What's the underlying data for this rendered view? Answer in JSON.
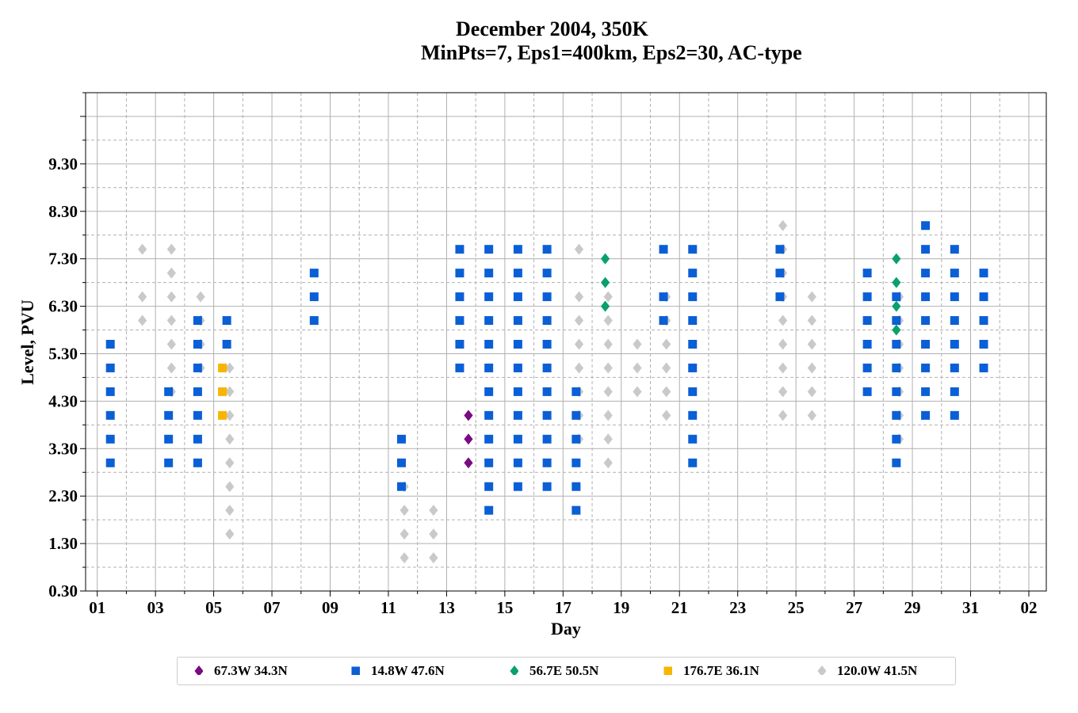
{
  "chart_data": {
    "type": "scatter",
    "title_line1": "December 2004, 350K",
    "title_line2": "MinPts=7, Eps1=400km, Eps2=30, AC-type",
    "xlabel": "Day",
    "ylabel": "Level, PVU",
    "x_ticks": [
      "01",
      "03",
      "05",
      "07",
      "09",
      "11",
      "13",
      "15",
      "17",
      "19",
      "21",
      "23",
      "25",
      "27",
      "29",
      "31",
      "02"
    ],
    "y_ticks": [
      "0.30",
      "1.30",
      "2.30",
      "3.30",
      "4.30",
      "5.30",
      "6.30",
      "7.30",
      "8.30",
      "9.30"
    ],
    "xlim": [
      0.6,
      33.6
    ],
    "ylim": [
      0.3,
      10.8
    ],
    "grid": true,
    "legend_position": "bottom-center",
    "series": [
      {
        "name": "67.3W 34.3N",
        "color": "#7a0a82",
        "marker": "diamond",
        "points": [
          [
            13.75,
            3.0
          ],
          [
            13.75,
            3.5
          ],
          [
            13.75,
            4.0
          ]
        ]
      },
      {
        "name": "14.8W 47.6N",
        "color": "#0b5fd6",
        "marker": "square",
        "points": [
          [
            1.45,
            3.0
          ],
          [
            1.45,
            3.5
          ],
          [
            1.45,
            4.0
          ],
          [
            1.45,
            4.5
          ],
          [
            1.45,
            5.0
          ],
          [
            1.45,
            5.5
          ],
          [
            3.45,
            3.0
          ],
          [
            3.45,
            3.5
          ],
          [
            3.45,
            4.0
          ],
          [
            3.45,
            4.5
          ],
          [
            4.45,
            3.0
          ],
          [
            4.45,
            3.5
          ],
          [
            4.45,
            4.0
          ],
          [
            4.45,
            4.5
          ],
          [
            4.45,
            5.0
          ],
          [
            4.45,
            5.5
          ],
          [
            4.45,
            6.0
          ],
          [
            5.45,
            5.5
          ],
          [
            5.45,
            6.0
          ],
          [
            8.45,
            6.0
          ],
          [
            8.45,
            6.5
          ],
          [
            8.45,
            7.0
          ],
          [
            11.45,
            2.5
          ],
          [
            11.45,
            3.0
          ],
          [
            11.45,
            3.5
          ],
          [
            13.45,
            5.0
          ],
          [
            13.45,
            5.5
          ],
          [
            13.45,
            6.0
          ],
          [
            13.45,
            6.5
          ],
          [
            13.45,
            7.0
          ],
          [
            13.45,
            7.5
          ],
          [
            14.45,
            2.0
          ],
          [
            14.45,
            2.5
          ],
          [
            14.45,
            3.0
          ],
          [
            14.45,
            3.5
          ],
          [
            14.45,
            4.0
          ],
          [
            14.45,
            4.5
          ],
          [
            14.45,
            5.0
          ],
          [
            14.45,
            5.5
          ],
          [
            14.45,
            6.0
          ],
          [
            14.45,
            6.5
          ],
          [
            14.45,
            7.0
          ],
          [
            14.45,
            7.5
          ],
          [
            15.45,
            2.5
          ],
          [
            15.45,
            3.0
          ],
          [
            15.45,
            3.5
          ],
          [
            15.45,
            4.0
          ],
          [
            15.45,
            4.5
          ],
          [
            15.45,
            5.0
          ],
          [
            15.45,
            5.5
          ],
          [
            15.45,
            6.0
          ],
          [
            15.45,
            6.5
          ],
          [
            15.45,
            7.0
          ],
          [
            15.45,
            7.5
          ],
          [
            16.45,
            2.5
          ],
          [
            16.45,
            3.0
          ],
          [
            16.45,
            3.5
          ],
          [
            16.45,
            4.0
          ],
          [
            16.45,
            4.5
          ],
          [
            16.45,
            5.0
          ],
          [
            16.45,
            5.5
          ],
          [
            16.45,
            6.0
          ],
          [
            16.45,
            6.5
          ],
          [
            16.45,
            7.0
          ],
          [
            16.45,
            7.5
          ],
          [
            17.45,
            2.0
          ],
          [
            17.45,
            2.5
          ],
          [
            17.45,
            3.0
          ],
          [
            17.45,
            3.5
          ],
          [
            17.45,
            4.0
          ],
          [
            17.45,
            4.5
          ],
          [
            20.45,
            6.0
          ],
          [
            20.45,
            6.5
          ],
          [
            20.45,
            7.5
          ],
          [
            21.45,
            3.0
          ],
          [
            21.45,
            3.5
          ],
          [
            21.45,
            4.0
          ],
          [
            21.45,
            4.5
          ],
          [
            21.45,
            5.0
          ],
          [
            21.45,
            5.5
          ],
          [
            21.45,
            6.0
          ],
          [
            21.45,
            6.5
          ],
          [
            21.45,
            7.0
          ],
          [
            21.45,
            7.5
          ],
          [
            24.45,
            6.5
          ],
          [
            24.45,
            7.0
          ],
          [
            24.45,
            7.5
          ],
          [
            27.45,
            4.5
          ],
          [
            27.45,
            5.0
          ],
          [
            27.45,
            5.5
          ],
          [
            27.45,
            6.0
          ],
          [
            27.45,
            6.5
          ],
          [
            27.45,
            7.0
          ],
          [
            28.45,
            3.0
          ],
          [
            28.45,
            3.5
          ],
          [
            28.45,
            4.0
          ],
          [
            28.45,
            4.5
          ],
          [
            28.45,
            5.0
          ],
          [
            28.45,
            5.5
          ],
          [
            28.45,
            6.0
          ],
          [
            28.45,
            6.5
          ],
          [
            29.45,
            4.0
          ],
          [
            29.45,
            4.5
          ],
          [
            29.45,
            5.0
          ],
          [
            29.45,
            5.5
          ],
          [
            29.45,
            6.0
          ],
          [
            29.45,
            6.5
          ],
          [
            29.45,
            7.0
          ],
          [
            29.45,
            7.5
          ],
          [
            29.45,
            8.0
          ],
          [
            30.45,
            4.0
          ],
          [
            30.45,
            4.5
          ],
          [
            30.45,
            5.0
          ],
          [
            30.45,
            5.5
          ],
          [
            30.45,
            6.0
          ],
          [
            30.45,
            6.5
          ],
          [
            30.45,
            7.0
          ],
          [
            30.45,
            7.5
          ],
          [
            31.45,
            5.0
          ],
          [
            31.45,
            5.5
          ],
          [
            31.45,
            6.0
          ],
          [
            31.45,
            6.5
          ],
          [
            31.45,
            7.0
          ]
        ]
      },
      {
        "name": "56.7E 50.5N",
        "color": "#0aa06e",
        "marker": "diamond",
        "points": [
          [
            18.45,
            6.3
          ],
          [
            18.45,
            6.8
          ],
          [
            18.45,
            7.3
          ],
          [
            28.45,
            5.8
          ],
          [
            28.45,
            6.3
          ],
          [
            28.45,
            6.8
          ],
          [
            28.45,
            7.3
          ]
        ]
      },
      {
        "name": "176.7E 36.1N",
        "color": "#f7b500",
        "marker": "square",
        "points": [
          [
            5.3,
            4.0
          ],
          [
            5.3,
            4.5
          ],
          [
            5.3,
            5.0
          ]
        ]
      },
      {
        "name": "120.0W 41.5N",
        "color": "#c9c9c9",
        "marker": "diamond",
        "points": [
          [
            2.55,
            6.0
          ],
          [
            2.55,
            6.5
          ],
          [
            2.55,
            7.5
          ],
          [
            3.55,
            4.5
          ],
          [
            3.55,
            5.0
          ],
          [
            3.55,
            5.5
          ],
          [
            3.55,
            6.0
          ],
          [
            3.55,
            6.5
          ],
          [
            3.55,
            7.0
          ],
          [
            3.55,
            7.5
          ],
          [
            4.55,
            5.0
          ],
          [
            4.55,
            5.5
          ],
          [
            4.55,
            6.0
          ],
          [
            4.55,
            6.5
          ],
          [
            5.55,
            1.5
          ],
          [
            5.55,
            2.0
          ],
          [
            5.55,
            2.5
          ],
          [
            5.55,
            3.0
          ],
          [
            5.55,
            3.5
          ],
          [
            5.55,
            4.0
          ],
          [
            5.55,
            4.5
          ],
          [
            5.55,
            5.0
          ],
          [
            11.55,
            1.0
          ],
          [
            11.55,
            1.5
          ],
          [
            11.55,
            2.0
          ],
          [
            11.55,
            2.5
          ],
          [
            12.55,
            1.0
          ],
          [
            12.55,
            1.5
          ],
          [
            12.55,
            2.0
          ],
          [
            17.55,
            3.5
          ],
          [
            17.55,
            4.0
          ],
          [
            17.55,
            4.5
          ],
          [
            17.55,
            5.0
          ],
          [
            17.55,
            5.5
          ],
          [
            17.55,
            6.0
          ],
          [
            17.55,
            6.5
          ],
          [
            17.55,
            7.5
          ],
          [
            18.55,
            3.0
          ],
          [
            18.55,
            3.5
          ],
          [
            18.55,
            4.0
          ],
          [
            18.55,
            4.5
          ],
          [
            18.55,
            5.0
          ],
          [
            18.55,
            5.5
          ],
          [
            18.55,
            6.0
          ],
          [
            18.55,
            6.5
          ],
          [
            19.55,
            4.5
          ],
          [
            19.55,
            5.0
          ],
          [
            19.55,
            5.5
          ],
          [
            20.55,
            4.0
          ],
          [
            20.55,
            4.5
          ],
          [
            20.55,
            5.0
          ],
          [
            20.55,
            5.5
          ],
          [
            20.55,
            6.0
          ],
          [
            20.55,
            6.5
          ],
          [
            24.55,
            4.0
          ],
          [
            24.55,
            4.5
          ],
          [
            24.55,
            5.0
          ],
          [
            24.55,
            5.5
          ],
          [
            24.55,
            6.0
          ],
          [
            24.55,
            6.5
          ],
          [
            24.55,
            7.0
          ],
          [
            24.55,
            7.5
          ],
          [
            24.55,
            8.0
          ],
          [
            25.55,
            4.0
          ],
          [
            25.55,
            4.5
          ],
          [
            25.55,
            5.0
          ],
          [
            25.55,
            5.5
          ],
          [
            25.55,
            6.0
          ],
          [
            25.55,
            6.5
          ],
          [
            28.55,
            3.5
          ],
          [
            28.55,
            4.0
          ],
          [
            28.55,
            4.5
          ],
          [
            28.55,
            5.0
          ],
          [
            28.55,
            5.5
          ],
          [
            28.55,
            6.0
          ],
          [
            28.55,
            6.5
          ]
        ]
      }
    ]
  }
}
